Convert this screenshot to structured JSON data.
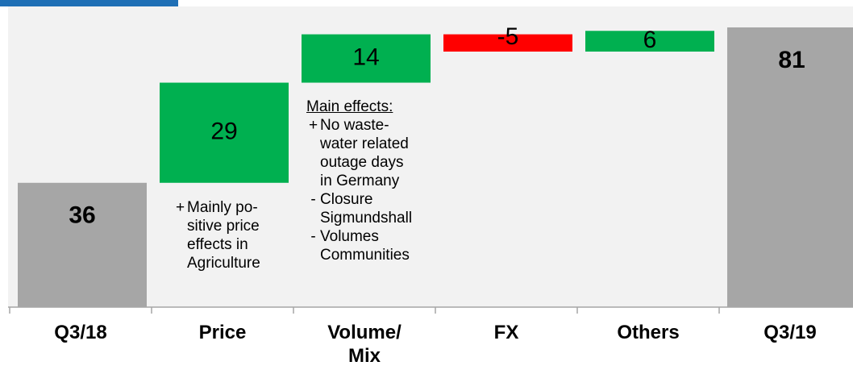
{
  "chart_data": {
    "type": "waterfall",
    "categories": [
      "Q3/18",
      "Price",
      "Volume/\nMix",
      "FX",
      "Others",
      "Q3/19"
    ],
    "values": [
      36,
      29,
      14,
      -5,
      6,
      81
    ],
    "totals": [
      true,
      false,
      false,
      false,
      false,
      true
    ],
    "colors": {
      "total": "#a6a6a6",
      "increase": "#00b050",
      "decrease": "#ff0000"
    },
    "annotations": [
      {
        "bullets": [
          {
            "sign": "+",
            "text": "Mainly po-\nsitive price\neffects in\nAgriculture"
          }
        ]
      },
      {
        "heading": "Main effects:",
        "bullets": [
          {
            "sign": "+",
            "text": "No waste-\nwater related\noutage days\nin Germany"
          },
          {
            "sign": "-",
            "text": "Closure\nSigmundshall"
          },
          {
            "sign": "-",
            "text": "Volumes\nCommunities"
          }
        ]
      }
    ]
  }
}
